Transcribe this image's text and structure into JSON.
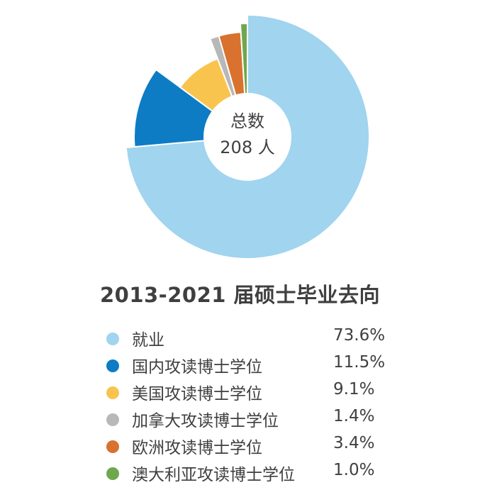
{
  "chart_data": {
    "type": "pie",
    "title": "2013-2021 届硕士毕业去向",
    "center_label": "总数",
    "center_value": "208 人",
    "slices": [
      {
        "label": "就业",
        "value": 73.6,
        "display": "73.6%",
        "color": "#a0d4ef"
      },
      {
        "label": "国内攻读博士学位",
        "value": 11.5,
        "display": "11.5%",
        "color": "#0d7cc4"
      },
      {
        "label": "美国攻读博士学位",
        "value": 9.1,
        "display": "9.1%",
        "color": "#f9c44e"
      },
      {
        "label": "加拿大攻读博士学位",
        "value": 1.4,
        "display": "1.4%",
        "color": "#b8b8b8"
      },
      {
        "label": "欧洲攻读博士学位",
        "value": 3.4,
        "display": "3.4%",
        "color": "#d9712f"
      },
      {
        "label": "澳大利亚攻读博士学位",
        "value": 1.0,
        "display": "1.0%",
        "color": "#6ea84e"
      }
    ]
  }
}
